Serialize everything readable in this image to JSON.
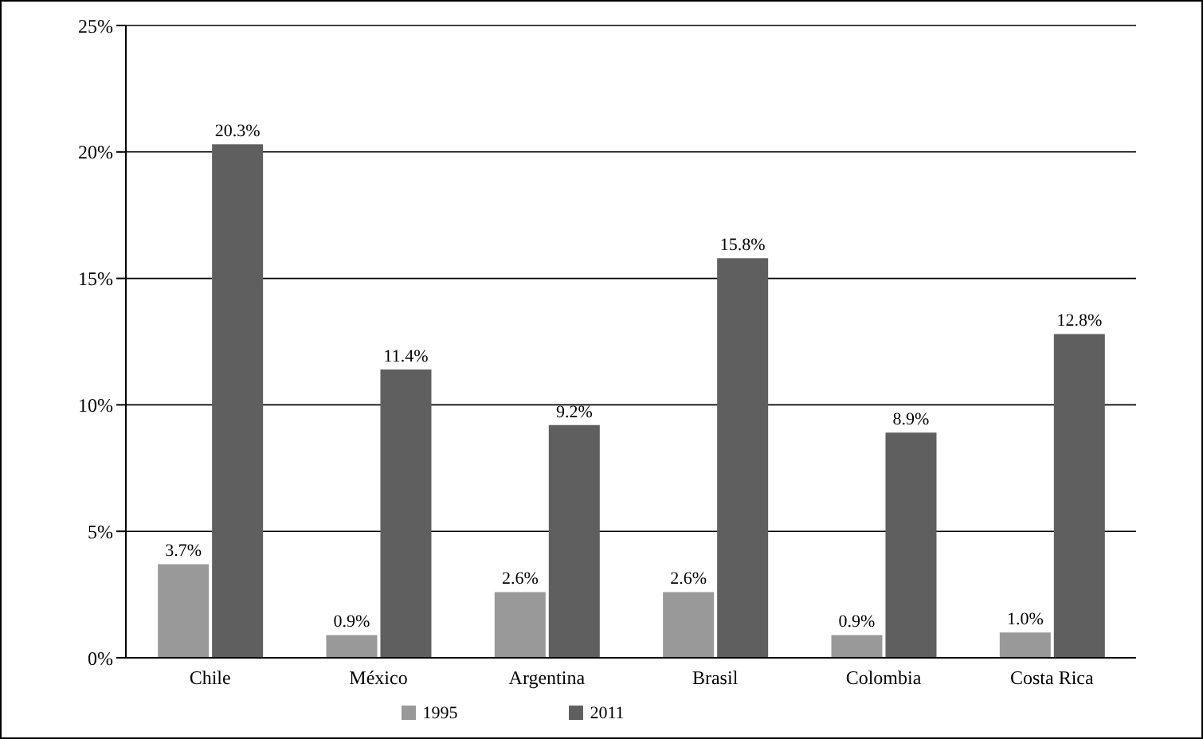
{
  "chart_data": {
    "type": "bar",
    "categories": [
      "Chile",
      "México",
      "Argentina",
      "Brasil",
      "Colombia",
      "Costa Rica"
    ],
    "series": [
      {
        "name": "1995",
        "color": "#999999",
        "values": [
          3.7,
          0.9,
          2.6,
          2.6,
          0.9,
          1.0
        ],
        "value_labels": [
          "3.7%",
          "0.9%",
          "2.6%",
          "2.6%",
          "0.9%",
          "1.0%"
        ]
      },
      {
        "name": "2011",
        "color": "#5f5f5f",
        "values": [
          20.3,
          11.4,
          9.2,
          15.8,
          8.9,
          12.8
        ],
        "value_labels": [
          "20.3%",
          "11.4%",
          "9.2%",
          "15.8%",
          "8.9%",
          "12.8%"
        ]
      }
    ],
    "ylim": [
      0,
      25
    ],
    "yticks": [
      {
        "value": 0,
        "label": "0%"
      },
      {
        "value": 5,
        "label": "5%"
      },
      {
        "value": 10,
        "label": "10%"
      },
      {
        "value": 15,
        "label": "15%"
      },
      {
        "value": 20,
        "label": "20%"
      },
      {
        "value": 25,
        "label": "25%"
      }
    ],
    "grid": "y",
    "legend": "bottom"
  }
}
